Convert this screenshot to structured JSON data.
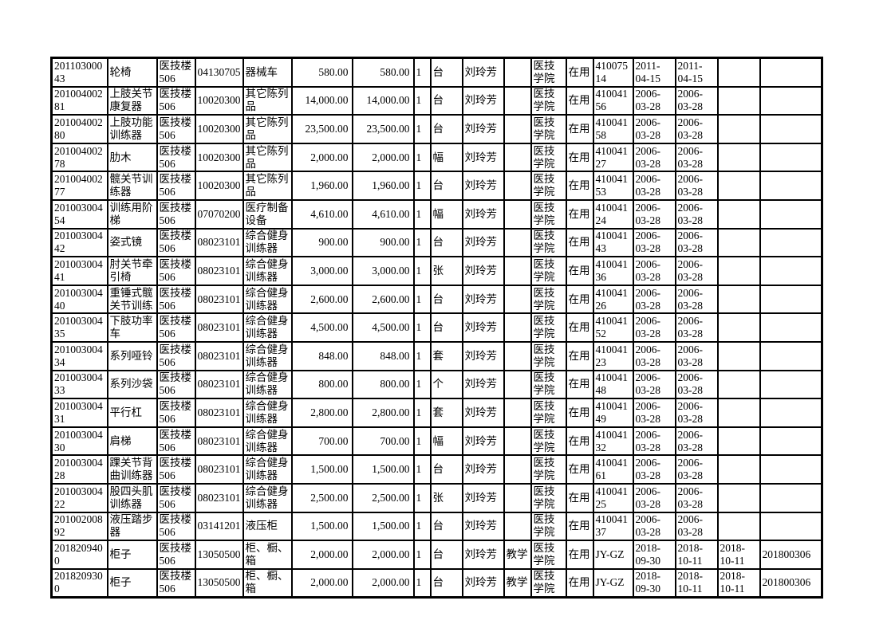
{
  "page": {
    "background_color": "#ffffff",
    "grid_color": "#000000",
    "text_color": "#000000"
  },
  "table": {
    "columns": [
      "id",
      "name",
      "location",
      "code",
      "category",
      "price",
      "amount",
      "qty",
      "unit",
      "person",
      "use",
      "dept",
      "status",
      "asset_no",
      "date1",
      "date2",
      "date3",
      "doc_no"
    ],
    "rows": [
      [
        "20110300043",
        "轮椅",
        "医技楼506",
        "04130705",
        "器械车",
        "580.00",
        "580.00",
        "1",
        "台",
        "刘玲芳",
        "",
        "医技学院",
        "在用",
        "41007514",
        "2011-04-15",
        "2011-04-15",
        "",
        ""
      ],
      [
        "20100400281",
        "上肢关节康复器",
        "医技楼506",
        "10020300",
        "其它陈列品",
        "14,000.00",
        "14,000.00",
        "1",
        "台",
        "刘玲芳",
        "",
        "医技学院",
        "在用",
        "41004156",
        "2006-03-28",
        "2006-03-28",
        "",
        ""
      ],
      [
        "20100400280",
        "上肢功能训练器",
        "医技楼506",
        "10020300",
        "其它陈列品",
        "23,500.00",
        "23,500.00",
        "1",
        "台",
        "刘玲芳",
        "",
        "医技学院",
        "在用",
        "41004158",
        "2006-03-28",
        "2006-03-28",
        "",
        ""
      ],
      [
        "20100400278",
        "肋木",
        "医技楼506",
        "10020300",
        "其它陈列品",
        "2,000.00",
        "2,000.00",
        "1",
        "幅",
        "刘玲芳",
        "",
        "医技学院",
        "在用",
        "41004127",
        "2006-03-28",
        "2006-03-28",
        "",
        ""
      ],
      [
        "20100400277",
        "髋关节训练器",
        "医技楼506",
        "10020300",
        "其它陈列品",
        "1,960.00",
        "1,960.00",
        "1",
        "台",
        "刘玲芳",
        "",
        "医技学院",
        "在用",
        "41004153",
        "2006-03-28",
        "2006-03-28",
        "",
        ""
      ],
      [
        "20100300454",
        "训练用阶梯",
        "医技楼506",
        "07070200",
        "医疗制备设备",
        "4,610.00",
        "4,610.00",
        "1",
        "幅",
        "刘玲芳",
        "",
        "医技学院",
        "在用",
        "41004124",
        "2006-03-28",
        "2006-03-28",
        "",
        ""
      ],
      [
        "20100300442",
        "姿式镜",
        "医技楼506",
        "08023101",
        "综合健身训练器",
        "900.00",
        "900.00",
        "1",
        "台",
        "刘玲芳",
        "",
        "医技学院",
        "在用",
        "41004143",
        "2006-03-28",
        "2006-03-28",
        "",
        ""
      ],
      [
        "20100300441",
        "肘关节牵引椅",
        "医技楼506",
        "08023101",
        "综合健身训练器",
        "3,000.00",
        "3,000.00",
        "1",
        "张",
        "刘玲芳",
        "",
        "医技学院",
        "在用",
        "41004136",
        "2006-03-28",
        "2006-03-28",
        "",
        ""
      ],
      [
        "20100300440",
        "重锤式髋关节训练",
        "医技楼506",
        "08023101",
        "综合健身训练器",
        "2,600.00",
        "2,600.00",
        "1",
        "台",
        "刘玲芳",
        "",
        "医技学院",
        "在用",
        "41004126",
        "2006-03-28",
        "2006-03-28",
        "",
        ""
      ],
      [
        "20100300435",
        "下肢功率车",
        "医技楼506",
        "08023101",
        "综合健身训练器",
        "4,500.00",
        "4,500.00",
        "1",
        "台",
        "刘玲芳",
        "",
        "医技学院",
        "在用",
        "41004152",
        "2006-03-28",
        "2006-03-28",
        "",
        ""
      ],
      [
        "20100300434",
        "系列哑铃",
        "医技楼506",
        "08023101",
        "综合健身训练器",
        "848.00",
        "848.00",
        "1",
        "套",
        "刘玲芳",
        "",
        "医技学院",
        "在用",
        "41004123",
        "2006-03-28",
        "2006-03-28",
        "",
        ""
      ],
      [
        "20100300433",
        "系列沙袋",
        "医技楼506",
        "08023101",
        "综合健身训练器",
        "800.00",
        "800.00",
        "1",
        "个",
        "刘玲芳",
        "",
        "医技学院",
        "在用",
        "41004148",
        "2006-03-28",
        "2006-03-28",
        "",
        ""
      ],
      [
        "20100300431",
        "平行杠",
        "医技楼506",
        "08023101",
        "综合健身训练器",
        "2,800.00",
        "2,800.00",
        "1",
        "套",
        "刘玲芳",
        "",
        "医技学院",
        "在用",
        "41004149",
        "2006-03-28",
        "2006-03-28",
        "",
        ""
      ],
      [
        "20100300430",
        "肩梯",
        "医技楼506",
        "08023101",
        "综合健身训练器",
        "700.00",
        "700.00",
        "1",
        "幅",
        "刘玲芳",
        "",
        "医技学院",
        "在用",
        "41004132",
        "2006-03-28",
        "2006-03-28",
        "",
        ""
      ],
      [
        "20100300428",
        "踝关节背曲训练器",
        "医技楼506",
        "08023101",
        "综合健身训练器",
        "1,500.00",
        "1,500.00",
        "1",
        "台",
        "刘玲芳",
        "",
        "医技学院",
        "在用",
        "41004161",
        "2006-03-28",
        "2006-03-28",
        "",
        ""
      ],
      [
        "20100300422",
        "股四头肌训练器",
        "医技楼506",
        "08023101",
        "综合健身训练器",
        "2,500.00",
        "2,500.00",
        "1",
        "张",
        "刘玲芳",
        "",
        "医技学院",
        "在用",
        "41004125",
        "2006-03-28",
        "2006-03-28",
        "",
        ""
      ],
      [
        "20100200892",
        "液压踏步器",
        "医技楼506",
        "03141201",
        "液压柜",
        "1,500.00",
        "1,500.00",
        "1",
        "台",
        "刘玲芳",
        "",
        "医技学院",
        "在用",
        "41004137",
        "2006-03-28",
        "2006-03-28",
        "",
        ""
      ],
      [
        "2018209400",
        "柜子",
        "医技楼506",
        "13050500",
        "柜、橱、箱",
        "2,000.00",
        "2,000.00",
        "1",
        "台",
        "刘玲芳",
        "教学",
        "医技学院",
        "在用",
        "JY-GZ",
        "2018-09-30",
        "2018-10-11",
        "2018-10-11",
        "201800306"
      ],
      [
        "2018209300",
        "柜子",
        "医技楼506",
        "13050500",
        "柜、橱、箱",
        "2,000.00",
        "2,000.00",
        "1",
        "台",
        "刘玲芳",
        "教学",
        "医技学院",
        "在用",
        "JY-GZ",
        "2018-09-30",
        "2018-10-11",
        "2018-10-11",
        "201800306"
      ]
    ]
  }
}
